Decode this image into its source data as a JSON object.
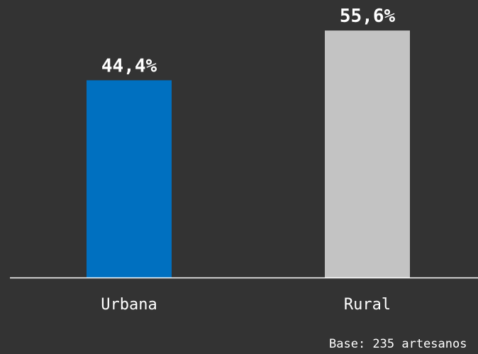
{
  "colors": {
    "background": "#333333",
    "axis": "#ffffff",
    "text": "#ffffff"
  },
  "chart_data": {
    "type": "bar",
    "categories": [
      "Urbana",
      "Rural"
    ],
    "values": [
      44.4,
      55.6
    ],
    "value_labels": [
      "44,4%",
      "55,6%"
    ],
    "colors": [
      "#0070C0",
      "#C3C3C3"
    ],
    "title": "",
    "xlabel": "",
    "ylabel": "",
    "ylim": [
      0,
      62.47
    ],
    "grid": false,
    "legend": "none"
  },
  "footnote": "Base: 235 artesanos"
}
